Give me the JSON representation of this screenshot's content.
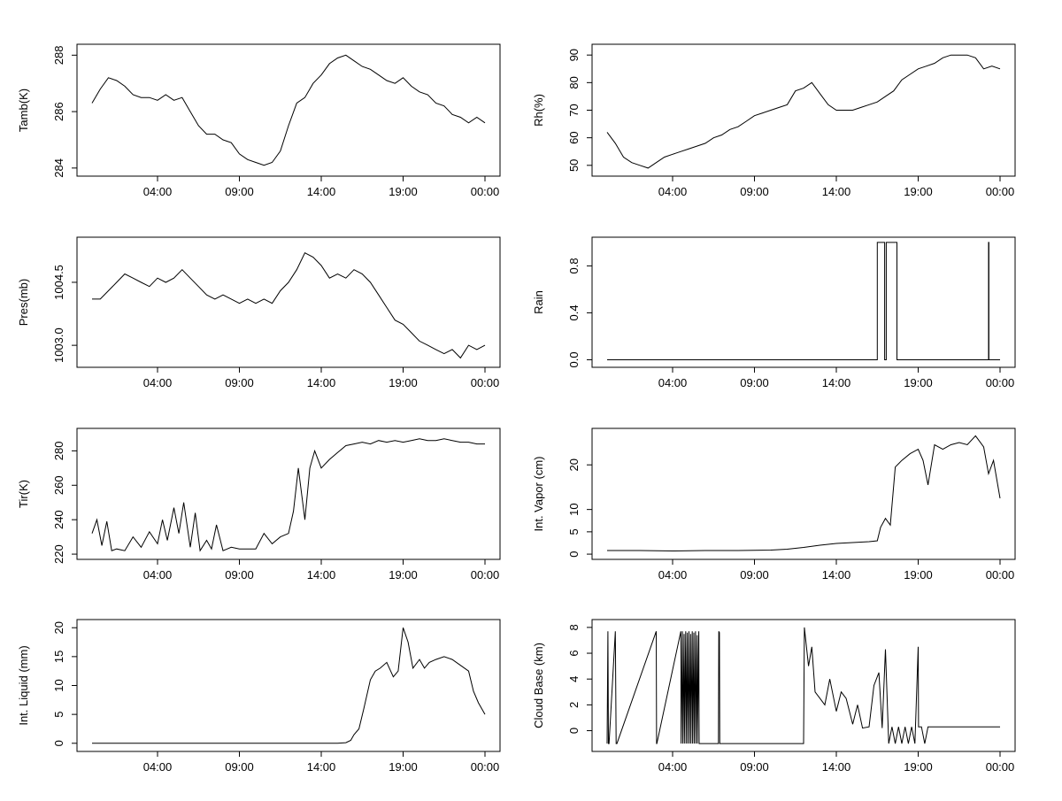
{
  "chart_data": [
    {
      "type": "line",
      "ylabel": "Tamb(K)",
      "ylim": [
        283.9,
        288.2
      ],
      "yticks": [
        284,
        286,
        288
      ],
      "xticks": [
        "04:00",
        "09:00",
        "14:00",
        "19:00",
        "00:00"
      ],
      "xlim": [
        0,
        24
      ],
      "series": [
        {
          "x": [
            0.0,
            0.5,
            1.0,
            1.5,
            2.0,
            2.5,
            3.0,
            3.5,
            4.0,
            4.5,
            5.0,
            5.5,
            6.0,
            6.5,
            7.0,
            7.5,
            8.0,
            8.5,
            9.0,
            9.5,
            10.0,
            10.5,
            11.0,
            11.5,
            12.0,
            12.5,
            13.0,
            13.5,
            14.0,
            14.5,
            15.0,
            15.5,
            16.0,
            16.5,
            17.0,
            17.5,
            18.0,
            18.5,
            19.0,
            19.5,
            20.0,
            20.5,
            21.0,
            21.5,
            22.0,
            22.5,
            23.0,
            23.5,
            24.0
          ],
          "y": [
            286.3,
            286.8,
            287.2,
            287.1,
            286.9,
            286.6,
            286.5,
            286.5,
            286.4,
            286.6,
            286.4,
            286.5,
            286.0,
            285.5,
            285.2,
            285.2,
            285.0,
            284.9,
            284.5,
            284.3,
            284.2,
            284.1,
            284.2,
            284.6,
            285.5,
            286.3,
            286.5,
            287.0,
            287.3,
            287.7,
            287.9,
            288.0,
            287.8,
            287.6,
            287.5,
            287.3,
            287.1,
            287.0,
            287.2,
            286.9,
            286.7,
            286.6,
            286.3,
            286.2,
            285.9,
            285.8,
            285.6,
            285.8,
            285.6
          ]
        }
      ]
    },
    {
      "type": "line",
      "ylabel": "Rh(%)",
      "ylim": [
        48,
        92
      ],
      "yticks": [
        50,
        60,
        70,
        80,
        90
      ],
      "xticks": [
        "04:00",
        "09:00",
        "14:00",
        "19:00",
        "00:00"
      ],
      "xlim": [
        0,
        24
      ],
      "series": [
        {
          "x": [
            0.0,
            0.5,
            1.0,
            1.5,
            2.0,
            2.5,
            3.0,
            3.5,
            4.0,
            4.5,
            5.0,
            5.5,
            6.0,
            6.5,
            7.0,
            7.5,
            8.0,
            8.5,
            9.0,
            9.5,
            10.0,
            10.5,
            11.0,
            11.5,
            12.0,
            12.5,
            13.0,
            13.5,
            14.0,
            14.5,
            15.0,
            15.5,
            16.0,
            16.5,
            17.0,
            17.5,
            18.0,
            18.5,
            19.0,
            19.5,
            20.0,
            20.5,
            21.0,
            21.5,
            22.0,
            22.5,
            23.0,
            23.5,
            24.0
          ],
          "y": [
            62,
            58,
            53,
            51,
            50,
            49,
            51,
            53,
            54,
            55,
            56,
            57,
            58,
            60,
            61,
            63,
            64,
            66,
            68,
            69,
            70,
            71,
            72,
            77,
            78,
            80,
            76,
            72,
            70,
            70,
            70,
            71,
            72,
            73,
            75,
            77,
            81,
            83,
            85,
            86,
            87,
            89,
            90,
            90,
            90,
            89,
            85,
            86,
            85
          ]
        }
      ]
    },
    {
      "type": "line",
      "ylabel": "Pres(mb)",
      "ylim": [
        1002.6,
        1005.45
      ],
      "yticks": [
        1003.0,
        1004.5
      ],
      "ytick_labels": [
        "1003.0",
        "1004.5"
      ],
      "xticks": [
        "04:00",
        "09:00",
        "14:00",
        "19:00",
        "00:00"
      ],
      "xlim": [
        0,
        24
      ],
      "series": [
        {
          "x": [
            0.0,
            0.5,
            1.0,
            1.5,
            2.0,
            2.5,
            3.0,
            3.5,
            4.0,
            4.5,
            5.0,
            5.5,
            6.0,
            6.5,
            7.0,
            7.5,
            8.0,
            8.5,
            9.0,
            9.5,
            10.0,
            10.5,
            11.0,
            11.5,
            12.0,
            12.5,
            13.0,
            13.5,
            14.0,
            14.5,
            15.0,
            15.5,
            16.0,
            16.5,
            17.0,
            17.5,
            18.0,
            18.5,
            19.0,
            19.5,
            20.0,
            20.5,
            21.0,
            21.5,
            22.0,
            22.5,
            23.0,
            23.5,
            24.0
          ],
          "y": [
            1004.1,
            1004.1,
            1004.3,
            1004.5,
            1004.7,
            1004.6,
            1004.5,
            1004.4,
            1004.6,
            1004.5,
            1004.6,
            1004.8,
            1004.6,
            1004.4,
            1004.2,
            1004.1,
            1004.2,
            1004.1,
            1004.0,
            1004.1,
            1004.0,
            1004.1,
            1004.0,
            1004.3,
            1004.5,
            1004.8,
            1005.2,
            1005.1,
            1004.9,
            1004.6,
            1004.7,
            1004.6,
            1004.8,
            1004.7,
            1004.5,
            1004.2,
            1003.9,
            1003.6,
            1003.5,
            1003.3,
            1003.1,
            1003.0,
            1002.9,
            1002.8,
            1002.9,
            1002.7,
            1003.0,
            1002.9,
            1003.0
          ]
        }
      ]
    },
    {
      "type": "line",
      "ylabel": "Rain",
      "ylim": [
        -0.02,
        1.0
      ],
      "yticks": [
        0.0,
        0.4,
        0.8
      ],
      "ytick_labels": [
        "0.0",
        "0.4",
        "0.8"
      ],
      "xticks": [
        "04:00",
        "09:00",
        "14:00",
        "19:00",
        "00:00"
      ],
      "xlim": [
        0,
        24
      ],
      "series": [
        {
          "x": [
            0.0,
            16.5,
            16.5,
            16.95,
            16.95,
            17.05,
            17.05,
            17.7,
            17.7,
            17.75,
            17.75,
            23.3,
            23.3,
            23.32,
            23.32,
            24.0
          ],
          "y": [
            0,
            0,
            1,
            1,
            0,
            0,
            1,
            1,
            0,
            0,
            0,
            0,
            1,
            1,
            0,
            0
          ]
        }
      ]
    },
    {
      "type": "line",
      "ylabel": "Tir(K)",
      "ylim": [
        220,
        290
      ],
      "yticks": [
        220,
        240,
        260,
        280
      ],
      "xticks": [
        "04:00",
        "09:00",
        "14:00",
        "19:00",
        "00:00"
      ],
      "xlim": [
        0,
        24
      ],
      "series": [
        {
          "x": [
            0.0,
            0.3,
            0.6,
            0.9,
            1.2,
            1.5,
            2.0,
            2.5,
            3.0,
            3.5,
            4.0,
            4.3,
            4.6,
            5.0,
            5.3,
            5.6,
            6.0,
            6.3,
            6.6,
            7.0,
            7.3,
            7.6,
            8.0,
            8.5,
            9.0,
            9.5,
            10.0,
            10.5,
            11.0,
            11.5,
            12.0,
            12.3,
            12.6,
            13.0,
            13.3,
            13.6,
            14.0,
            14.5,
            15.0,
            15.5,
            16.0,
            16.5,
            17.0,
            17.5,
            18.0,
            18.5,
            19.0,
            19.5,
            20.0,
            20.5,
            21.0,
            21.5,
            22.0,
            22.5,
            23.0,
            23.5,
            24.0
          ],
          "y": [
            232,
            240,
            225,
            239,
            222,
            223,
            222,
            230,
            224,
            233,
            226,
            240,
            228,
            247,
            232,
            250,
            224,
            244,
            222,
            228,
            223,
            237,
            222,
            224,
            223,
            223,
            223,
            232,
            226,
            230,
            232,
            245,
            270,
            240,
            270,
            280,
            270,
            275,
            279,
            283,
            284,
            285,
            284,
            286,
            285,
            286,
            285,
            286,
            287,
            286,
            286,
            287,
            286,
            285,
            285,
            284,
            284
          ]
        }
      ]
    },
    {
      "type": "line",
      "ylabel": "Int. Vapor (cm)",
      "ylim": [
        0,
        27
      ],
      "yticks": [
        0,
        5,
        10,
        20
      ],
      "xticks": [
        "04:00",
        "09:00",
        "14:00",
        "19:00",
        "00:00"
      ],
      "xlim": [
        0,
        24
      ],
      "series": [
        {
          "x": [
            0.0,
            2.0,
            4.0,
            6.0,
            8.0,
            10.0,
            11.0,
            12.0,
            13.0,
            14.0,
            15.0,
            16.0,
            16.5,
            16.7,
            17.0,
            17.3,
            17.6,
            18.0,
            18.5,
            19.0,
            19.3,
            19.6,
            20.0,
            20.5,
            21.0,
            21.5,
            22.0,
            22.5,
            23.0,
            23.3,
            23.6,
            24.0
          ],
          "y": [
            0.8,
            0.8,
            0.7,
            0.8,
            0.8,
            0.9,
            1.1,
            1.5,
            2.0,
            2.4,
            2.6,
            2.8,
            3.0,
            6.0,
            8.0,
            6.5,
            19.5,
            21.0,
            22.5,
            23.5,
            21.0,
            15.5,
            24.5,
            23.5,
            24.5,
            25.0,
            24.5,
            26.5,
            24.0,
            18.0,
            21.0,
            12.5
          ]
        }
      ]
    },
    {
      "type": "line",
      "ylabel": "Int. Liquid (mm)",
      "ylim": [
        -0.5,
        20.5
      ],
      "yticks": [
        0,
        5,
        10,
        15,
        20
      ],
      "xticks": [
        "04:00",
        "09:00",
        "14:00",
        "19:00",
        "00:00"
      ],
      "xlim": [
        0,
        24
      ],
      "series": [
        {
          "x": [
            0.0,
            5.0,
            10.0,
            14.0,
            15.0,
            15.5,
            15.8,
            16.0,
            16.3,
            16.6,
            17.0,
            17.3,
            17.6,
            18.0,
            18.4,
            18.7,
            19.0,
            19.3,
            19.6,
            20.0,
            20.3,
            20.6,
            21.0,
            21.5,
            22.0,
            22.5,
            23.0,
            23.3,
            23.6,
            24.0
          ],
          "y": [
            0,
            0,
            0,
            0,
            0,
            0.1,
            0.5,
            1.5,
            2.5,
            6.0,
            11.0,
            12.5,
            13.0,
            14.0,
            11.5,
            12.5,
            20.0,
            17.5,
            13.0,
            14.5,
            13.0,
            14.0,
            14.5,
            15.0,
            14.5,
            13.5,
            12.5,
            9.0,
            7.0,
            5.0
          ]
        }
      ]
    },
    {
      "type": "line",
      "ylabel": "Cloud Base (km)",
      "ylim": [
        -1.2,
        8.2
      ],
      "yticks": [
        0,
        2,
        4,
        6,
        8
      ],
      "xticks": [
        "04:00",
        "09:00",
        "14:00",
        "19:00",
        "00:00"
      ],
      "xlim": [
        0,
        24
      ],
      "series": [
        {
          "x": [
            0.0,
            0.05,
            0.08,
            0.12,
            0.5,
            0.55,
            0.6,
            3.0,
            3.02,
            3.04,
            4.5,
            4.52,
            4.6,
            4.62,
            4.7,
            4.72,
            4.8,
            4.82,
            4.9,
            4.92,
            5.0,
            5.02,
            5.1,
            5.12,
            5.2,
            5.22,
            5.3,
            5.32,
            5.4,
            5.42,
            5.5,
            5.52,
            5.6,
            5.62,
            6.8,
            6.82,
            6.86,
            6.88,
            12.0,
            12.05,
            12.3,
            12.5,
            12.7,
            13.0,
            13.3,
            13.6,
            14.0,
            14.3,
            14.6,
            15.0,
            15.3,
            15.6,
            16.0,
            16.3,
            16.6,
            16.8,
            17.0,
            17.2,
            17.4,
            17.6,
            17.8,
            18.0,
            18.2,
            18.4,
            18.6,
            18.8,
            19.0,
            19.02,
            19.2,
            19.4,
            19.6,
            20.0,
            21.0,
            22.0,
            23.0,
            24.0
          ],
          "y": [
            -1,
            7.7,
            -1,
            -1,
            7.7,
            -1,
            -1,
            7.7,
            -1,
            -1,
            7.7,
            -1,
            7.7,
            -1,
            7.5,
            -1,
            7.7,
            -1,
            7.6,
            -1,
            7.7,
            -1,
            7.5,
            -1,
            7.7,
            -1,
            7.6,
            -1,
            7.7,
            -1,
            7.4,
            -1,
            7.7,
            -1,
            -1,
            7.7,
            7.6,
            -1,
            -1,
            8.0,
            5.0,
            6.5,
            3.0,
            2.5,
            2.0,
            4.0,
            1.5,
            3.0,
            2.5,
            0.5,
            2.0,
            0.2,
            0.3,
            3.5,
            4.5,
            0.2,
            6.3,
            -1.0,
            0.3,
            -1.0,
            0.3,
            -1.0,
            0.3,
            -1.0,
            0.3,
            -1.0,
            6.5,
            0.3,
            0.3,
            -1.0,
            0.3,
            0.3,
            0.3,
            0.3,
            0.3,
            0.3
          ]
        }
      ]
    }
  ]
}
